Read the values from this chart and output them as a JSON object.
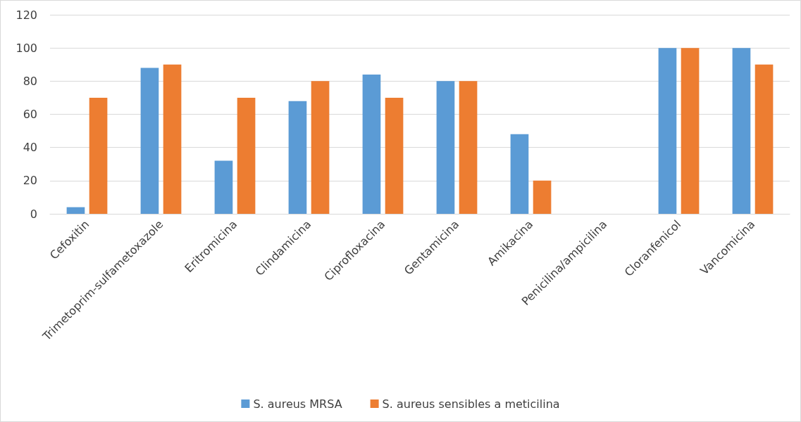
{
  "chart_data": {
    "type": "bar",
    "categories": [
      "Cefoxitin",
      "Trimetoprim-sulfametoxazole",
      "Eritromicina",
      "Clindamicina",
      "Ciprofloxacina",
      "Gentamicina",
      "Amikacina",
      "Penicilina/ampicilina",
      "Cloranfenicol",
      "Vancomicina"
    ],
    "series": [
      {
        "name": "S. aureus MRSA",
        "color": "#5b9bd5",
        "values": [
          4,
          88,
          32,
          68,
          84,
          80,
          48,
          0,
          100,
          100
        ]
      },
      {
        "name": "S. aureus sensibles a meticilina",
        "color": "#ed7d31",
        "values": [
          70,
          90,
          70,
          80,
          70,
          80,
          20,
          0,
          100,
          90
        ]
      }
    ],
    "ylim": [
      0,
      120
    ],
    "yticks": [
      0,
      20,
      40,
      60,
      80,
      100,
      120
    ],
    "grid": "y",
    "legend": "bottom"
  }
}
